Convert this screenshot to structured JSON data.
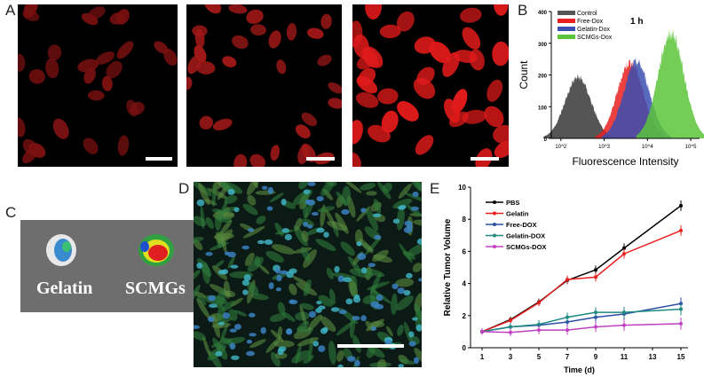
{
  "panel_labels": {
    "a": "A",
    "b": "B",
    "c": "C",
    "d": "D",
    "e": "E"
  },
  "panel_c": {
    "left_label": "Gelatin",
    "right_label": "SCMGs"
  },
  "chart_data": [
    {
      "panel": "B",
      "type": "area",
      "annotation": "1 h",
      "xlabel": "Fluorescence Intensity",
      "ylabel": "Count",
      "xscale": "log",
      "xlim": [
        60,
        160000
      ],
      "ylim": [
        0,
        400
      ],
      "xticks": [
        "10^2",
        "10^3",
        "10^4",
        "10^5"
      ],
      "yticks": [
        0,
        100,
        200,
        300,
        400
      ],
      "legend_position": "top-left",
      "series": [
        {
          "name": "Control",
          "color": "#555555",
          "peak_intensity": 250,
          "peak_count": 200
        },
        {
          "name": "Free-Dox",
          "color": "#e8201f",
          "peak_intensity": 4000,
          "peak_count": 250
        },
        {
          "name": "Gelatin-Dox",
          "color": "#3a4fb0",
          "peak_intensity": 5600,
          "peak_count": 250
        },
        {
          "name": "SCMGs-Dox",
          "color": "#5ac43a",
          "peak_intensity": 35000,
          "peak_count": 345
        }
      ]
    },
    {
      "panel": "E",
      "type": "line",
      "xlabel": "Time (d)",
      "ylabel": "Relative Tumor Volume",
      "x": [
        1,
        3,
        5,
        7,
        9,
        11,
        15
      ],
      "xticks": [
        1,
        3,
        5,
        7,
        9,
        11,
        13,
        15
      ],
      "yticks": [
        0,
        2,
        4,
        6,
        8,
        10
      ],
      "xlim": [
        0,
        16
      ],
      "ylim": [
        0,
        10
      ],
      "legend_position": "top-left",
      "series": [
        {
          "name": "PBS",
          "color": "#000000",
          "marker": "square",
          "values": [
            1,
            1.75,
            2.85,
            4.2,
            4.85,
            6.2,
            8.85
          ]
        },
        {
          "name": "Gelatin",
          "color": "#e8201f",
          "marker": "circle",
          "values": [
            1,
            1.7,
            2.8,
            4.25,
            4.4,
            5.85,
            7.3
          ]
        },
        {
          "name": "Free-DOX",
          "color": "#2b4ea8",
          "marker": "triangle-up",
          "values": [
            1,
            1.3,
            1.4,
            1.6,
            1.9,
            2.1,
            2.75
          ]
        },
        {
          "name": "Gelatin-DOX",
          "color": "#1f8a80",
          "marker": "triangle-down",
          "values": [
            1,
            1.3,
            1.45,
            1.9,
            2.2,
            2.2,
            2.4
          ]
        },
        {
          "name": "SCMGs-DOX",
          "color": "#c040c0",
          "marker": "triangle-left",
          "values": [
            1,
            0.95,
            1.1,
            1.1,
            1.3,
            1.4,
            1.5
          ]
        }
      ]
    }
  ]
}
